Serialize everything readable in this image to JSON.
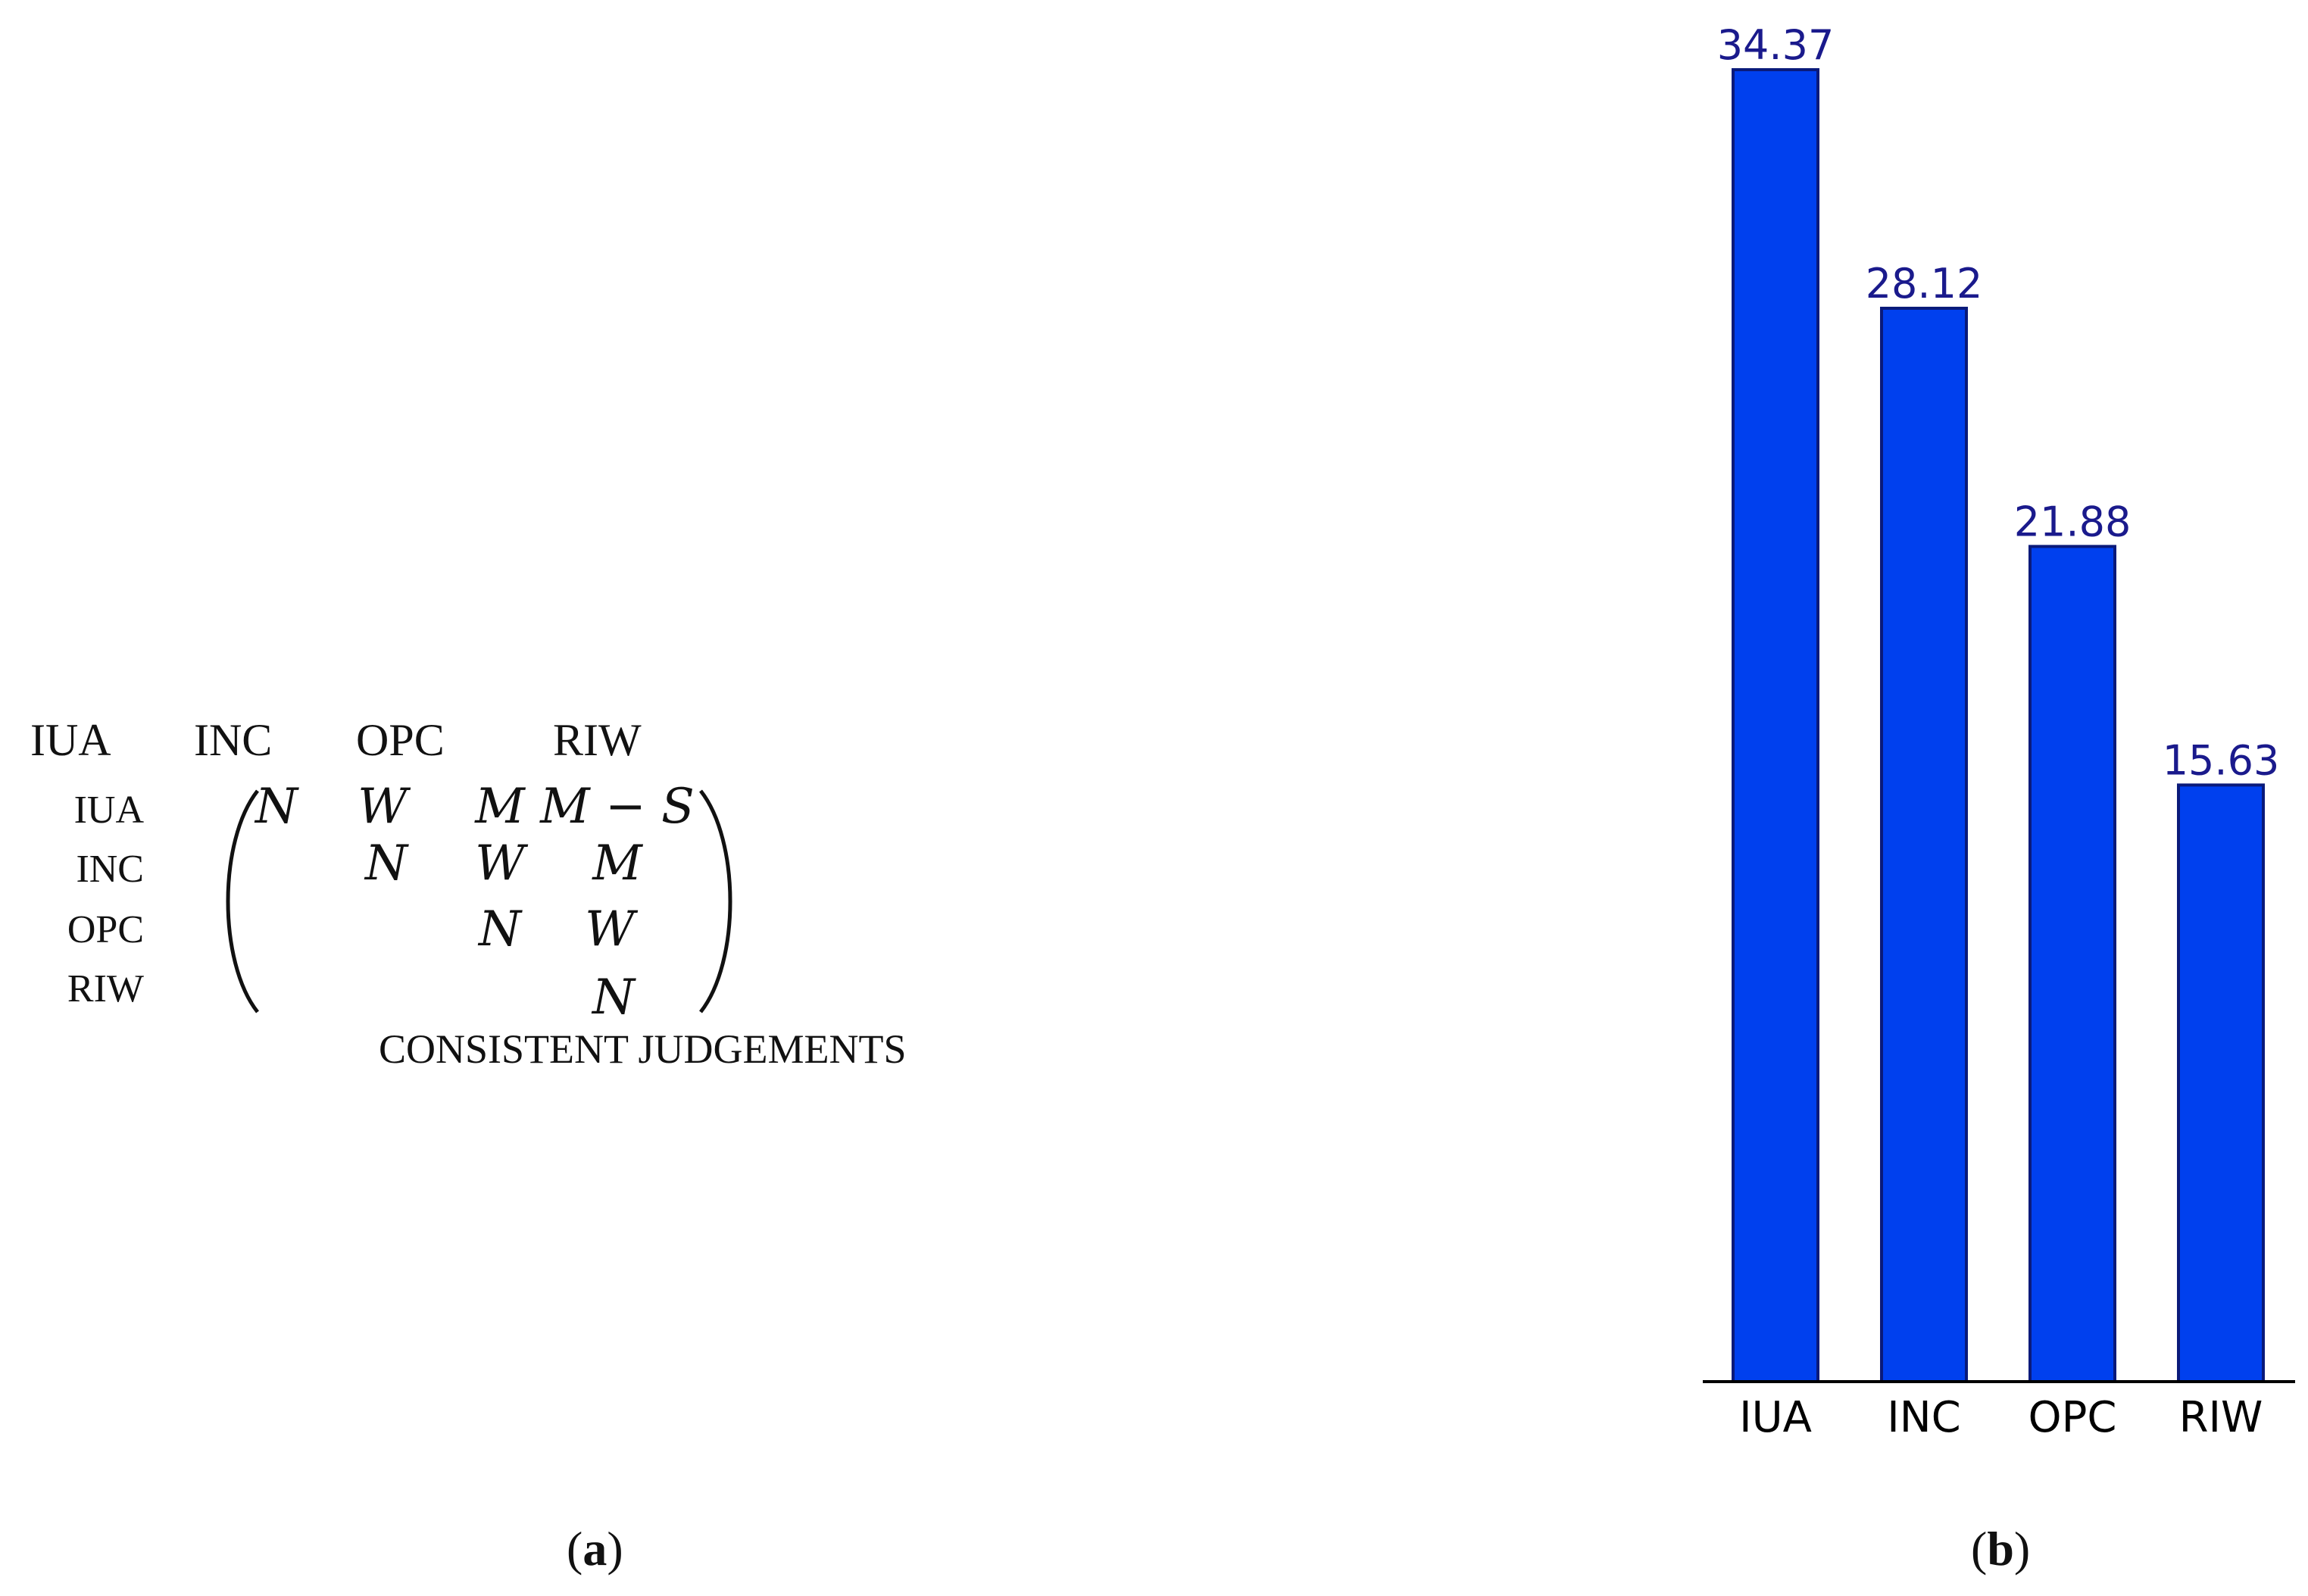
{
  "panel_a": {
    "caption_open": "(",
    "caption_letter": "a",
    "caption_close": ")",
    "column_headers": [
      "IUA",
      "INC",
      "OPC",
      "RIW"
    ],
    "row_labels": [
      "IUA",
      "INC",
      "OPC",
      "RIW"
    ],
    "rows": [
      [
        "N",
        "W",
        "M",
        "M − S"
      ],
      [
        "",
        "N",
        "W",
        "M"
      ],
      [
        "",
        "",
        "N",
        "W"
      ],
      [
        "",
        "",
        "",
        "N"
      ]
    ],
    "matrix_caption": "CONSISTENT JUDGEMENTS"
  },
  "panel_b": {
    "caption_open": "(",
    "caption_letter": "b",
    "caption_close": ")"
  },
  "chart_data": {
    "type": "bar",
    "categories": [
      "IUA",
      "INC",
      "OPC",
      "RIW"
    ],
    "values": [
      34.37,
      28.12,
      21.88,
      15.63
    ],
    "data_labels": [
      "34.37",
      "28.12",
      "21.88",
      "15.63"
    ],
    "title": "",
    "xlabel": "",
    "ylabel": "",
    "ylim": [
      0,
      34.37
    ],
    "grid": false,
    "legend": "none",
    "colors": {
      "bar_fill": "#0040ee",
      "bar_stroke": "#0a1a7a",
      "value_label": "#1a1a8c",
      "axis": "#000000",
      "tick_label": "#000000"
    }
  }
}
